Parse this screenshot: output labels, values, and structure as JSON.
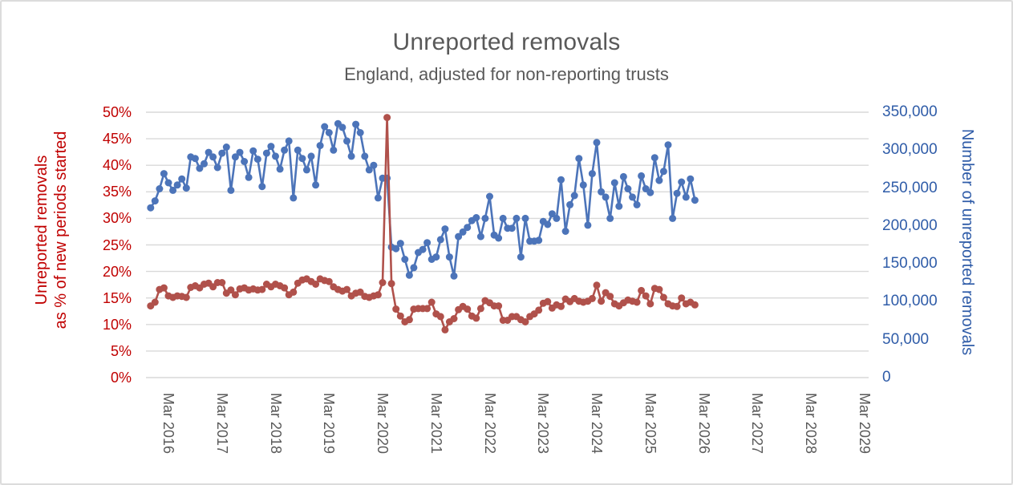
{
  "chart": {
    "title": "Unreported removals",
    "subtitle": "England, adjusted for non-reporting trusts",
    "left_axis": {
      "title_line1": "Unreported removals",
      "title_line2": "as % of new periods started",
      "ticks": [
        "0%",
        "5%",
        "10%",
        "15%",
        "20%",
        "25%",
        "30%",
        "35%",
        "40%",
        "45%",
        "50%"
      ],
      "text_color": "#C00000"
    },
    "right_axis": {
      "title": "Number of unreported removals",
      "ticks": [
        "0",
        "50,000",
        "100,000",
        "150,000",
        "200,000",
        "250,000",
        "300,000",
        "350,000"
      ],
      "text_color": "#2F5CA8"
    },
    "x_axis": {
      "ticks": [
        "Mar 2016",
        "Mar 2017",
        "Mar 2018",
        "Mar 2019",
        "Mar 2020",
        "Mar 2021",
        "Mar 2022",
        "Mar 2023",
        "Mar 2024",
        "Mar 2025",
        "Mar 2026",
        "Mar 2027",
        "Mar 2028",
        "Mar 2029"
      ],
      "text_color": "#595959"
    },
    "gridline_color": "#D9D9D9",
    "title_color": "#595959"
  },
  "chart_data": {
    "type": "line",
    "title": "Unreported removals",
    "subtitle": "England, adjusted for non-reporting trusts",
    "frequency": "monthly",
    "x_start": "2015-11",
    "x_end": "2026-01",
    "x_tick_labels": [
      "Mar 2016",
      "Mar 2017",
      "Mar 2018",
      "Mar 2019",
      "Mar 2020",
      "Mar 2021",
      "Mar 2022",
      "Mar 2023",
      "Mar 2024",
      "Mar 2025",
      "Mar 2026",
      "Mar 2027",
      "Mar 2028",
      "Mar 2029"
    ],
    "left_axis": {
      "label": "Unreported removals as % of new periods started",
      "unit": "%",
      "range": [
        0,
        50
      ],
      "tick_step": 5
    },
    "right_axis": {
      "label": "Number of unreported removals",
      "range": [
        0,
        350000
      ],
      "tick_step": 50000
    },
    "grid": "horizontal",
    "legend": "none",
    "series": [
      {
        "name": "Unreported removals as % of new periods started",
        "axis": "left",
        "unit": "percent",
        "color": "#B0514B",
        "values": [
          13.5,
          14.2,
          16.6,
          16.9,
          15.4,
          15.1,
          15.4,
          15.3,
          15.1,
          17.0,
          17.3,
          16.9,
          17.6,
          17.8,
          17.1,
          17.9,
          17.9,
          15.9,
          16.5,
          15.6,
          16.7,
          16.9,
          16.5,
          16.7,
          16.5,
          16.6,
          17.6,
          17.1,
          17.6,
          17.3,
          16.9,
          15.6,
          16.1,
          17.8,
          18.4,
          18.6,
          18.1,
          17.6,
          18.6,
          18.3,
          18.1,
          17.1,
          16.6,
          16.3,
          16.6,
          15.4,
          15.9,
          16.1,
          15.3,
          15.1,
          15.4,
          15.6,
          17.9,
          49.0,
          17.7,
          12.9,
          11.6,
          10.5,
          10.9,
          12.9,
          13.0,
          13.0,
          13.0,
          14.2,
          12.0,
          11.5,
          9.0,
          10.5,
          11.1,
          12.8,
          13.4,
          12.9,
          11.6,
          11.2,
          13.0,
          14.5,
          14.1,
          13.5,
          13.5,
          10.8,
          10.8,
          11.5,
          11.5,
          10.9,
          10.5,
          11.5,
          12.0,
          12.7,
          14.0,
          14.3,
          13.1,
          13.7,
          13.4,
          14.8,
          14.3,
          14.9,
          14.4,
          14.2,
          14.4,
          14.9,
          17.4,
          14.4,
          16.0,
          15.3,
          13.9,
          13.5,
          14.1,
          14.6,
          14.4,
          14.2,
          16.4,
          15.4,
          13.9,
          16.8,
          16.6,
          15.1,
          13.9,
          13.5,
          13.4,
          15.0,
          13.9,
          14.2,
          13.7
        ]
      },
      {
        "name": "Number of unreported removals",
        "axis": "right",
        "unit": "count",
        "color": "#4C74B9",
        "values": [
          224000,
          233000,
          249000,
          269000,
          257000,
          247000,
          254000,
          262000,
          250000,
          291000,
          289000,
          276000,
          282000,
          297000,
          291000,
          277000,
          296000,
          304000,
          247000,
          291000,
          297000,
          285000,
          264000,
          299000,
          288000,
          252000,
          296000,
          305000,
          292000,
          275000,
          300000,
          312000,
          237000,
          300000,
          289000,
          274000,
          292000,
          254000,
          306000,
          331000,
          323000,
          300000,
          335000,
          330000,
          312000,
          292000,
          334000,
          323000,
          292000,
          274000,
          280000,
          237000,
          263000,
          263000,
          172000,
          170000,
          177000,
          156000,
          135000,
          145000,
          165000,
          169000,
          178000,
          156000,
          159000,
          182000,
          196000,
          159000,
          134000,
          186000,
          192000,
          198000,
          207000,
          211000,
          186000,
          210000,
          239000,
          188000,
          184000,
          210000,
          197000,
          197000,
          210000,
          159000,
          210000,
          180000,
          180000,
          181000,
          206000,
          202000,
          216000,
          210000,
          261000,
          193000,
          228000,
          240000,
          289000,
          254000,
          201000,
          269000,
          310000,
          245000,
          238000,
          210000,
          257000,
          226000,
          265000,
          249000,
          238000,
          228000,
          266000,
          249000,
          244000,
          290000,
          260000,
          272000,
          307000,
          210000,
          243000,
          258000,
          238000,
          262000,
          234000
        ]
      }
    ]
  }
}
